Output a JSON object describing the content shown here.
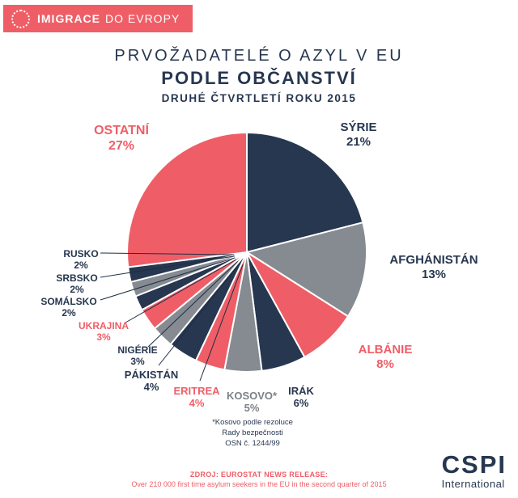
{
  "banner": {
    "title_bold": "IMIGRACE",
    "title_rest": "DO EVROPY"
  },
  "header": {
    "line1": "PRVOŽADATELÉ O AZYL V EU",
    "line2": "PODLE OBČANSTVÍ",
    "line3": "DRUHÉ ČTVRTLETÍ ROKU 2015"
  },
  "chart_data": {
    "type": "pie",
    "title": "Prvožadatelé o azyl v EU podle občanství — druhé čtvrtletí roku 2015",
    "unit": "%",
    "start_angle_deg": 0,
    "direction": "clockwise",
    "slices": [
      {
        "label": "SÝRIE",
        "value": 21,
        "color": "#273750",
        "label_color": "#273750"
      },
      {
        "label": "AFGHÁNISTÁN",
        "value": 13,
        "color": "#868b92",
        "label_color": "#273750"
      },
      {
        "label": "ALBÁNIE",
        "value": 8,
        "color": "#ef5e67",
        "label_color": "#ef5e67"
      },
      {
        "label": "IRÁK",
        "value": 6,
        "color": "#273750",
        "label_color": "#273750"
      },
      {
        "label": "KOSOVO*",
        "value": 5,
        "color": "#868b92",
        "label_color": "#7c8187"
      },
      {
        "label": "ERITREA",
        "value": 4,
        "color": "#ef5e67",
        "label_color": "#ef5e67"
      },
      {
        "label": "PÁKISTÁN",
        "value": 4,
        "color": "#273750",
        "label_color": "#273750"
      },
      {
        "label": "NIGÉRIE",
        "value": 3,
        "color": "#868b92",
        "label_color": "#273750"
      },
      {
        "label": "UKRAJINA",
        "value": 3,
        "color": "#ef5e67",
        "label_color": "#ef5e67"
      },
      {
        "label": "SOMÁLSKO",
        "value": 2,
        "color": "#273750",
        "label_color": "#273750"
      },
      {
        "label": "SRBSKO",
        "value": 2,
        "color": "#868b92",
        "label_color": "#273750"
      },
      {
        "label": "RUSKO",
        "value": 2,
        "color": "#273750",
        "label_color": "#273750"
      },
      {
        "label": "OSTATNÍ",
        "value": 27,
        "color": "#ef5e67",
        "label_color": "#ef5e67"
      }
    ]
  },
  "footnote": {
    "line1": "*Kosovo podle rezoluce",
    "line2": "Rady bezpečnosti",
    "line3": "OSN č. 1244/99"
  },
  "source": {
    "line1": "ZDROJ: EUROSTAT NEWS RELEASE:",
    "line2": "Over 210 000 first time asylum seekers in the EU in the second quarter of 2015"
  },
  "logo": {
    "name": "CSPI",
    "sub": "International"
  },
  "colors": {
    "red": "#ef5e67",
    "navy": "#273750",
    "gray": "#868b92"
  }
}
